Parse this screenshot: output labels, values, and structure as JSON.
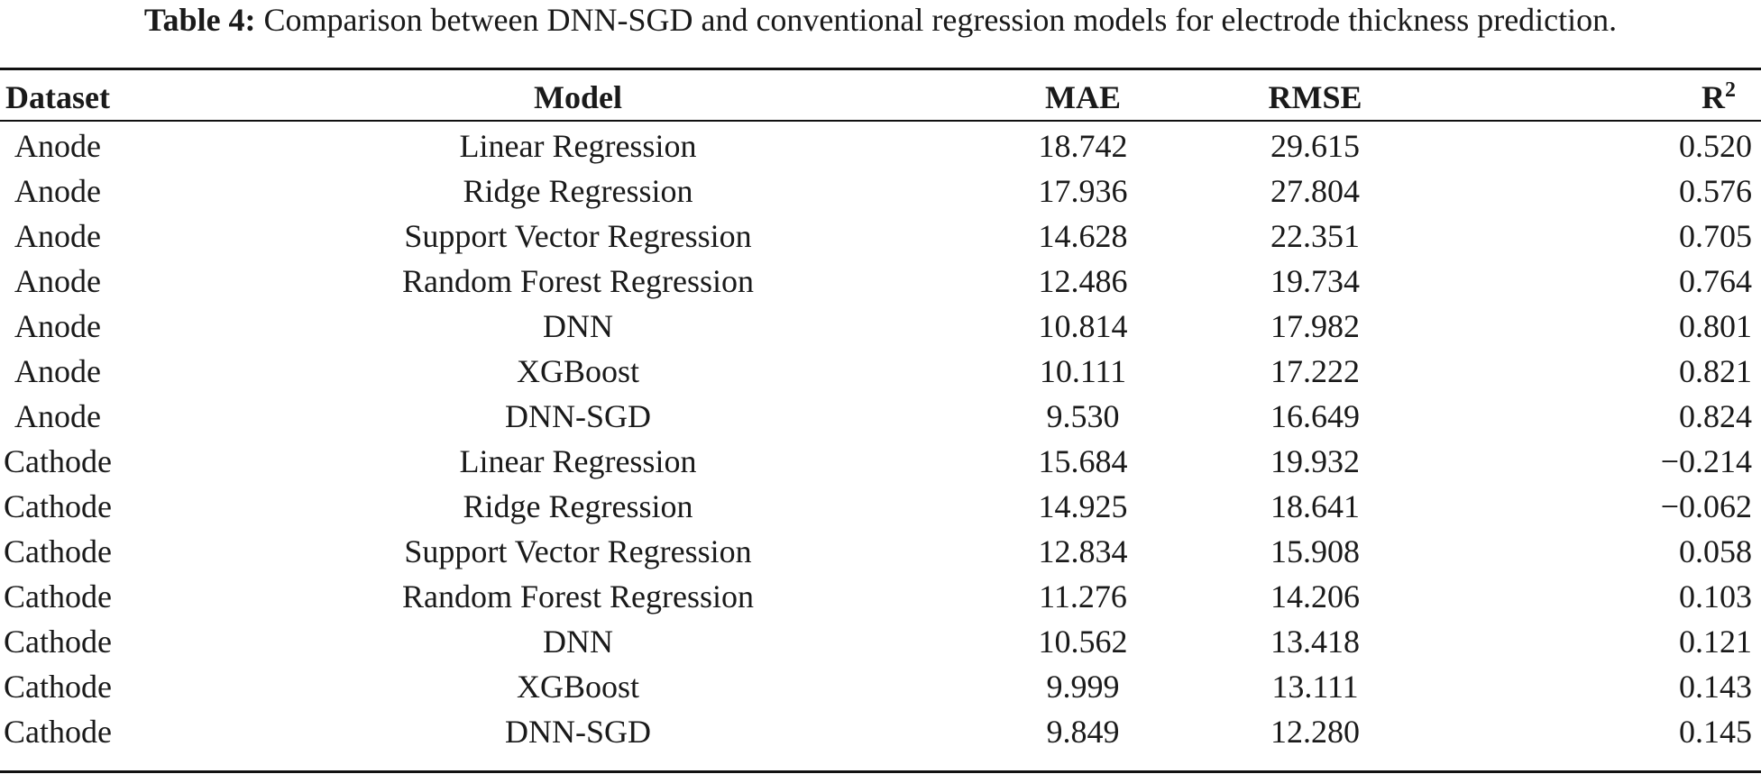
{
  "caption": {
    "label": "Table 4:",
    "text": "Comparison between DNN-SGD and conventional regression models for electrode thickness prediction."
  },
  "table": {
    "headers": {
      "dataset": "Dataset",
      "model": "Model",
      "mae": "MAE",
      "rmse": "RMSE",
      "r2_base": "R",
      "r2_sup": "2"
    },
    "rows": [
      {
        "dataset": "Anode",
        "model": "Linear Regression",
        "mae": "18.742",
        "rmse": "29.615",
        "r2": "0.520"
      },
      {
        "dataset": "Anode",
        "model": "Ridge Regression",
        "mae": "17.936",
        "rmse": "27.804",
        "r2": "0.576"
      },
      {
        "dataset": "Anode",
        "model": "Support Vector Regression",
        "mae": "14.628",
        "rmse": "22.351",
        "r2": "0.705"
      },
      {
        "dataset": "Anode",
        "model": "Random Forest Regression",
        "mae": "12.486",
        "rmse": "19.734",
        "r2": "0.764"
      },
      {
        "dataset": "Anode",
        "model": "DNN",
        "mae": "10.814",
        "rmse": "17.982",
        "r2": "0.801"
      },
      {
        "dataset": "Anode",
        "model": "XGBoost",
        "mae": "10.111",
        "rmse": "17.222",
        "r2": "0.821"
      },
      {
        "dataset": "Anode",
        "model": "DNN-SGD",
        "mae": "9.530",
        "rmse": "16.649",
        "r2": "0.824"
      },
      {
        "dataset": "Cathode",
        "model": "Linear Regression",
        "mae": "15.684",
        "rmse": "19.932",
        "r2": "−0.214"
      },
      {
        "dataset": "Cathode",
        "model": "Ridge Regression",
        "mae": "14.925",
        "rmse": "18.641",
        "r2": "−0.062"
      },
      {
        "dataset": "Cathode",
        "model": "Support Vector Regression",
        "mae": "12.834",
        "rmse": "15.908",
        "r2": "0.058"
      },
      {
        "dataset": "Cathode",
        "model": "Random Forest Regression",
        "mae": "11.276",
        "rmse": "14.206",
        "r2": "0.103"
      },
      {
        "dataset": "Cathode",
        "model": "DNN",
        "mae": "10.562",
        "rmse": "13.418",
        "r2": "0.121"
      },
      {
        "dataset": "Cathode",
        "model": "XGBoost",
        "mae": "9.999",
        "rmse": "13.111",
        "r2": "0.143"
      },
      {
        "dataset": "Cathode",
        "model": "DNN-SGD",
        "mae": "9.849",
        "rmse": "12.280",
        "r2": "0.145"
      }
    ]
  }
}
